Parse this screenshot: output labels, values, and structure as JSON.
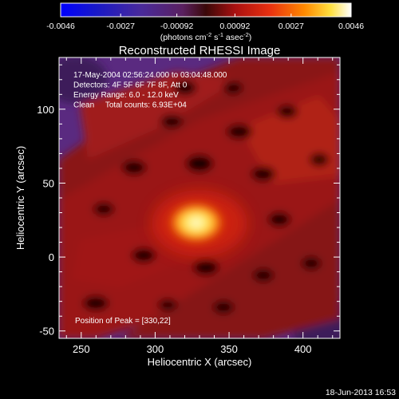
{
  "chart_data": {
    "type": "heatmap",
    "title": "Reconstructed RHESSI Image",
    "xlabel": "Heliocentric X (arcsec)",
    "ylabel": "Heliocentric Y (arcsec)",
    "xlim": [
      235,
      425
    ],
    "ylim": [
      -55,
      135
    ],
    "xticks": [
      250,
      300,
      350,
      400
    ],
    "yticks": [
      -50,
      0,
      50,
      100
    ],
    "colorbar": {
      "range": [
        -0.0046,
        0.0046
      ],
      "ticks": [
        "-0.0046",
        "-0.0027",
        "-0.00092",
        "0.00092",
        "0.0027",
        "0.0046"
      ],
      "tick_values": [
        -0.0046,
        -0.0027,
        -0.00092,
        0.00092,
        0.0027,
        0.0046
      ],
      "units_line1": "(photons cm",
      "units_exp1": "-2",
      "units_mid": " s",
      "units_exp2": "-1",
      "units_mid2": " asec",
      "units_exp3": "-2",
      "units_end": ")"
    },
    "info_lines": [
      "17-May-2004 02:56:24.000 to 03:04:48.000",
      "Detectors: 4F 5F 6F 7F 8F, Att 0",
      "Energy Range: 6.0 - 12.0 keV",
      "Clean     Total counts: 6.93E+04"
    ],
    "peak_label": "Position of Peak = [330,22]",
    "peak": [
      330,
      22
    ],
    "footer_date": "18-Jun-2013 16:53"
  }
}
